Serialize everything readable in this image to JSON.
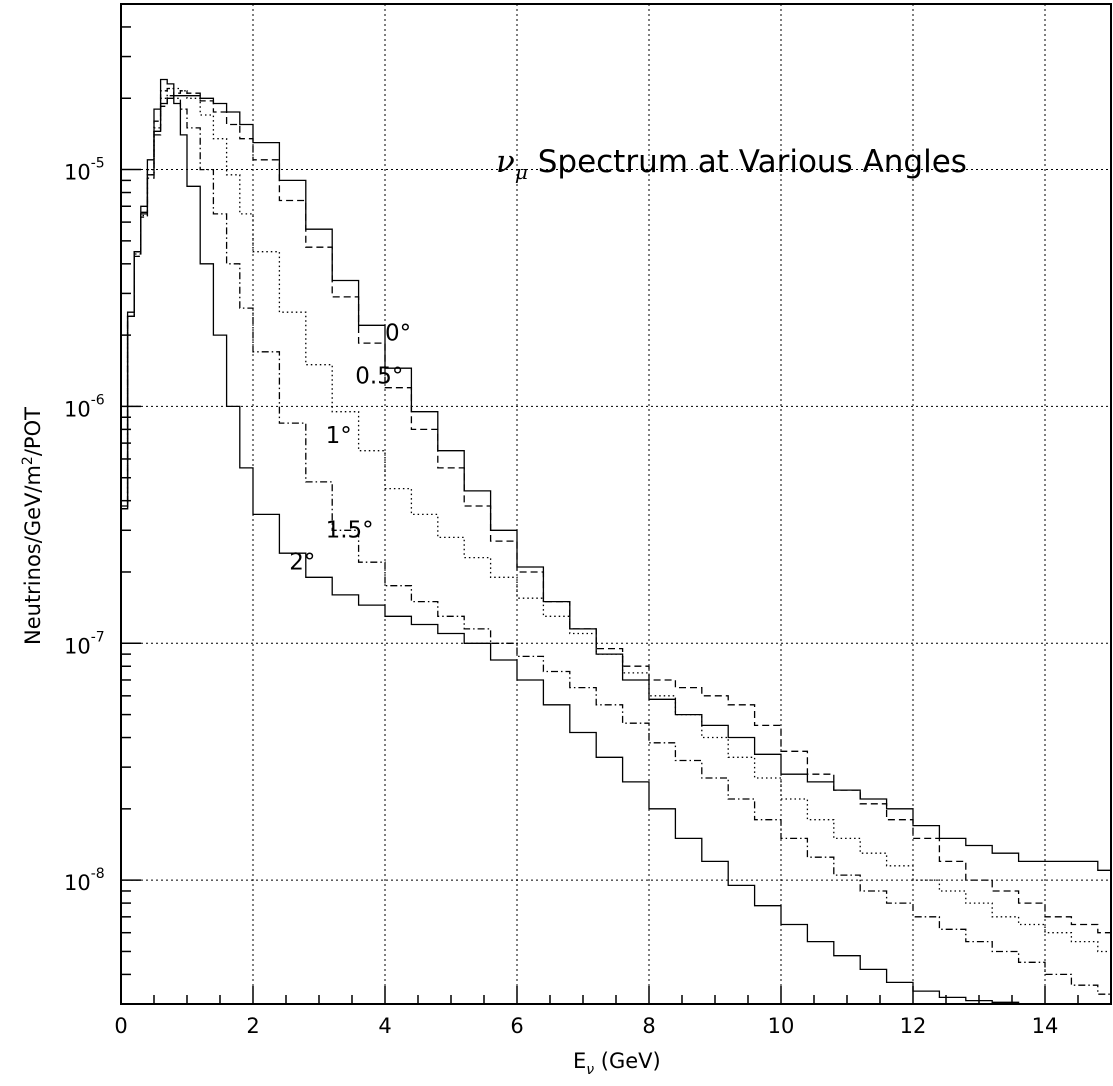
{
  "chart_data": {
    "type": "line",
    "title": "ν_μ Spectrum at Various Angles",
    "title_parts": {
      "nu": "ν",
      "mu": "μ",
      "rest": " Spectrum at Various Angles"
    },
    "xlabel": "E_ν (GeV)",
    "xlabel_parts": {
      "e": "E",
      "nu": "ν",
      "rest": " (GeV)"
    },
    "ylabel": "Neutrinos/GeV/m²/POT",
    "ylabel_parts": {
      "pre": "Neutrinos/GeV/m",
      "sup": "2",
      "post": "/POT"
    },
    "xlim": [
      0,
      15
    ],
    "ylim": [
      3e-09,
      5e-05
    ],
    "y_scale": "log",
    "grid": true,
    "x_ticks": [
      {
        "value": 0,
        "label": "0"
      },
      {
        "value": 2,
        "label": "2"
      },
      {
        "value": 4,
        "label": "4"
      },
      {
        "value": 6,
        "label": "6"
      },
      {
        "value": 8,
        "label": "8"
      },
      {
        "value": 10,
        "label": "10"
      },
      {
        "value": 12,
        "label": "12"
      },
      {
        "value": 14,
        "label": "14"
      }
    ],
    "y_ticks": [
      {
        "value": 1e-08,
        "base": "10",
        "exp": "-8"
      },
      {
        "value": 1e-07,
        "base": "10",
        "exp": "-7"
      },
      {
        "value": 1e-06,
        "base": "10",
        "exp": "-6"
      },
      {
        "value": 1e-05,
        "base": "10",
        "exp": "-5"
      }
    ],
    "annotations": [
      {
        "text": "0°",
        "x": 4.0,
        "y": 1.9e-06
      },
      {
        "text": "0.5°",
        "x": 3.55,
        "y": 1.25e-06
      },
      {
        "text": "1°",
        "x": 3.1,
        "y": 7e-07
      },
      {
        "text": "1.5°",
        "x": 3.1,
        "y": 2.8e-07
      },
      {
        "text": "2°",
        "x": 2.55,
        "y": 2.05e-07
      }
    ],
    "series": [
      {
        "angle": "0°",
        "style": "solid",
        "x": [
          0.0,
          0.1,
          0.2,
          0.3,
          0.4,
          0.5,
          0.6,
          0.7,
          0.8,
          0.9,
          1.0,
          1.2,
          1.4,
          1.6,
          1.8,
          2.0,
          2.4,
          2.8,
          3.2,
          3.6,
          4.0,
          4.4,
          4.8,
          5.2,
          5.6,
          6.0,
          6.4,
          6.8,
          7.2,
          7.6,
          8.0,
          8.4,
          8.8,
          9.2,
          9.6,
          10.0,
          10.4,
          10.8,
          11.2,
          11.6,
          12.0,
          12.4,
          12.8,
          13.2,
          13.6,
          14.0,
          14.4,
          14.8,
          15.0
        ],
        "y": [
          3.8e-07,
          2.5e-06,
          4.5e-06,
          6.5e-06,
          9.5e-06,
          1.45e-05,
          1.9e-05,
          2e-05,
          2.05e-05,
          2.05e-05,
          2.05e-05,
          2e-05,
          1.9e-05,
          1.75e-05,
          1.55e-05,
          1.3e-05,
          9e-06,
          5.6e-06,
          3.4e-06,
          2.2e-06,
          1.45e-06,
          9.5e-07,
          6.5e-07,
          4.4e-07,
          3e-07,
          2.1e-07,
          1.5e-07,
          1.15e-07,
          9e-08,
          7e-08,
          5.8e-08,
          5e-08,
          4.5e-08,
          4e-08,
          3.4e-08,
          2.8e-08,
          2.6e-08,
          2.4e-08,
          2.2e-08,
          2e-08,
          1.7e-08,
          1.5e-08,
          1.4e-08,
          1.3e-08,
          1.2e-08,
          1.2e-08,
          1.2e-08,
          1.1e-08,
          1.1e-08
        ]
      },
      {
        "angle": "0.5°",
        "style": "dashed",
        "x": [
          0.0,
          0.1,
          0.2,
          0.3,
          0.4,
          0.5,
          0.6,
          0.7,
          0.8,
          0.9,
          1.0,
          1.2,
          1.4,
          1.6,
          1.8,
          2.0,
          2.4,
          2.8,
          3.2,
          3.6,
          4.0,
          4.4,
          4.8,
          5.2,
          5.6,
          6.0,
          6.4,
          6.8,
          7.2,
          7.6,
          8.0,
          8.4,
          8.8,
          9.2,
          9.6,
          10.0,
          10.4,
          10.8,
          11.2,
          11.6,
          12.0,
          12.4,
          12.8,
          13.2,
          13.6,
          14.0,
          14.4,
          14.8,
          15.0
        ],
        "y": [
          3.7e-07,
          2.4e-06,
          4.3e-06,
          6.3e-06,
          9.2e-06,
          1.4e-05,
          1.85e-05,
          2.05e-05,
          2.1e-05,
          2.15e-05,
          2.1e-05,
          1.95e-05,
          1.75e-05,
          1.55e-05,
          1.35e-05,
          1.1e-05,
          7.4e-06,
          4.7e-06,
          2.9e-06,
          1.85e-06,
          1.2e-06,
          8e-07,
          5.5e-07,
          3.8e-07,
          2.7e-07,
          2e-07,
          1.5e-07,
          1.15e-07,
          9.5e-08,
          8e-08,
          7e-08,
          6.5e-08,
          6e-08,
          5.5e-08,
          4.5e-08,
          3.5e-08,
          2.8e-08,
          2.4e-08,
          2.1e-08,
          1.8e-08,
          1.5e-08,
          1.2e-08,
          1e-08,
          9e-09,
          8e-09,
          7e-09,
          6.5e-09,
          6e-09,
          6e-09
        ]
      },
      {
        "angle": "1°",
        "style": "dotted",
        "x": [
          0.0,
          0.1,
          0.2,
          0.3,
          0.4,
          0.5,
          0.6,
          0.7,
          0.8,
          0.9,
          1.0,
          1.2,
          1.4,
          1.6,
          1.8,
          2.0,
          2.4,
          2.8,
          3.2,
          3.6,
          4.0,
          4.4,
          4.8,
          5.2,
          5.6,
          6.0,
          6.4,
          6.8,
          7.2,
          7.6,
          8.0,
          8.4,
          8.8,
          9.2,
          9.6,
          10.0,
          10.4,
          10.8,
          11.2,
          11.6,
          12.0,
          12.4,
          12.8,
          13.2,
          13.6,
          14.0,
          14.4,
          14.8,
          15.0
        ],
        "y": [
          3.7e-07,
          2.4e-06,
          4.3e-06,
          6.4e-06,
          9.5e-06,
          1.5e-05,
          2e-05,
          2.2e-05,
          2.2e-05,
          2.15e-05,
          2e-05,
          1.7e-05,
          1.35e-05,
          9.5e-06,
          6.5e-06,
          4.5e-06,
          2.5e-06,
          1.5e-06,
          9.5e-07,
          6.5e-07,
          4.5e-07,
          3.5e-07,
          2.8e-07,
          2.3e-07,
          1.9e-07,
          1.55e-07,
          1.3e-07,
          1.1e-07,
          9e-08,
          7.5e-08,
          6e-08,
          5e-08,
          4e-08,
          3.3e-08,
          2.7e-08,
          2.2e-08,
          1.8e-08,
          1.5e-08,
          1.3e-08,
          1.15e-08,
          1e-08,
          9e-09,
          8e-09,
          7e-09,
          6.5e-09,
          6e-09,
          5.5e-09,
          5e-09,
          5e-09
        ]
      },
      {
        "angle": "1.5°",
        "style": "dashdot",
        "x": [
          0.0,
          0.1,
          0.2,
          0.3,
          0.4,
          0.5,
          0.6,
          0.7,
          0.8,
          0.9,
          1.0,
          1.2,
          1.4,
          1.6,
          1.8,
          2.0,
          2.4,
          2.8,
          3.2,
          3.6,
          4.0,
          4.4,
          4.8,
          5.2,
          5.6,
          6.0,
          6.4,
          6.8,
          7.2,
          7.6,
          8.0,
          8.4,
          8.8,
          9.2,
          9.6,
          10.0,
          10.4,
          10.8,
          11.2,
          11.6,
          12.0,
          12.4,
          12.8,
          13.2,
          13.6,
          14.0,
          14.4,
          14.8,
          15.0
        ],
        "y": [
          3.7e-07,
          2.4e-06,
          4.4e-06,
          6.6e-06,
          1e-05,
          1.6e-05,
          2.15e-05,
          2.2e-05,
          2e-05,
          1.8e-05,
          1.5e-05,
          1e-05,
          6.5e-06,
          4e-06,
          2.6e-06,
          1.7e-06,
          8.5e-07,
          4.8e-07,
          3e-07,
          2.2e-07,
          1.75e-07,
          1.5e-07,
          1.3e-07,
          1.15e-07,
          1e-07,
          8.8e-08,
          7.6e-08,
          6.5e-08,
          5.5e-08,
          4.6e-08,
          3.8e-08,
          3.2e-08,
          2.7e-08,
          2.2e-08,
          1.8e-08,
          1.5e-08,
          1.25e-08,
          1.05e-08,
          9e-09,
          8e-09,
          7e-09,
          6.2e-09,
          5.5e-09,
          5e-09,
          4.5e-09,
          4e-09,
          3.6e-09,
          3.3e-09,
          3.1e-09
        ]
      },
      {
        "angle": "2°",
        "style": "solid",
        "x": [
          0.0,
          0.1,
          0.2,
          0.3,
          0.4,
          0.5,
          0.6,
          0.7,
          0.8,
          0.9,
          1.0,
          1.2,
          1.4,
          1.6,
          1.8,
          2.0,
          2.4,
          2.8,
          3.2,
          3.6,
          4.0,
          4.4,
          4.8,
          5.2,
          5.6,
          6.0,
          6.4,
          6.8,
          7.2,
          7.6,
          8.0,
          8.4,
          8.8,
          9.2,
          9.6,
          10.0,
          10.4,
          10.8,
          11.2,
          11.6,
          12.0,
          12.4,
          12.8,
          13.2,
          13.6,
          14.0
        ],
        "y": [
          3.7e-07,
          2.4e-06,
          4.5e-06,
          7e-06,
          1.1e-05,
          1.8e-05,
          2.4e-05,
          2.3e-05,
          1.9e-05,
          1.4e-05,
          8.5e-06,
          4e-06,
          2e-06,
          1e-06,
          5.5e-07,
          3.5e-07,
          2.4e-07,
          1.9e-07,
          1.6e-07,
          1.45e-07,
          1.3e-07,
          1.2e-07,
          1.1e-07,
          1e-07,
          8.5e-08,
          7e-08,
          5.5e-08,
          4.2e-08,
          3.3e-08,
          2.6e-08,
          2e-08,
          1.5e-08,
          1.2e-08,
          9.5e-09,
          7.8e-09,
          6.5e-09,
          5.5e-09,
          4.8e-09,
          4.2e-09,
          3.7e-09,
          3.4e-09,
          3.2e-09,
          3.1e-09,
          3.05e-09,
          3e-09,
          3e-09
        ]
      }
    ]
  }
}
